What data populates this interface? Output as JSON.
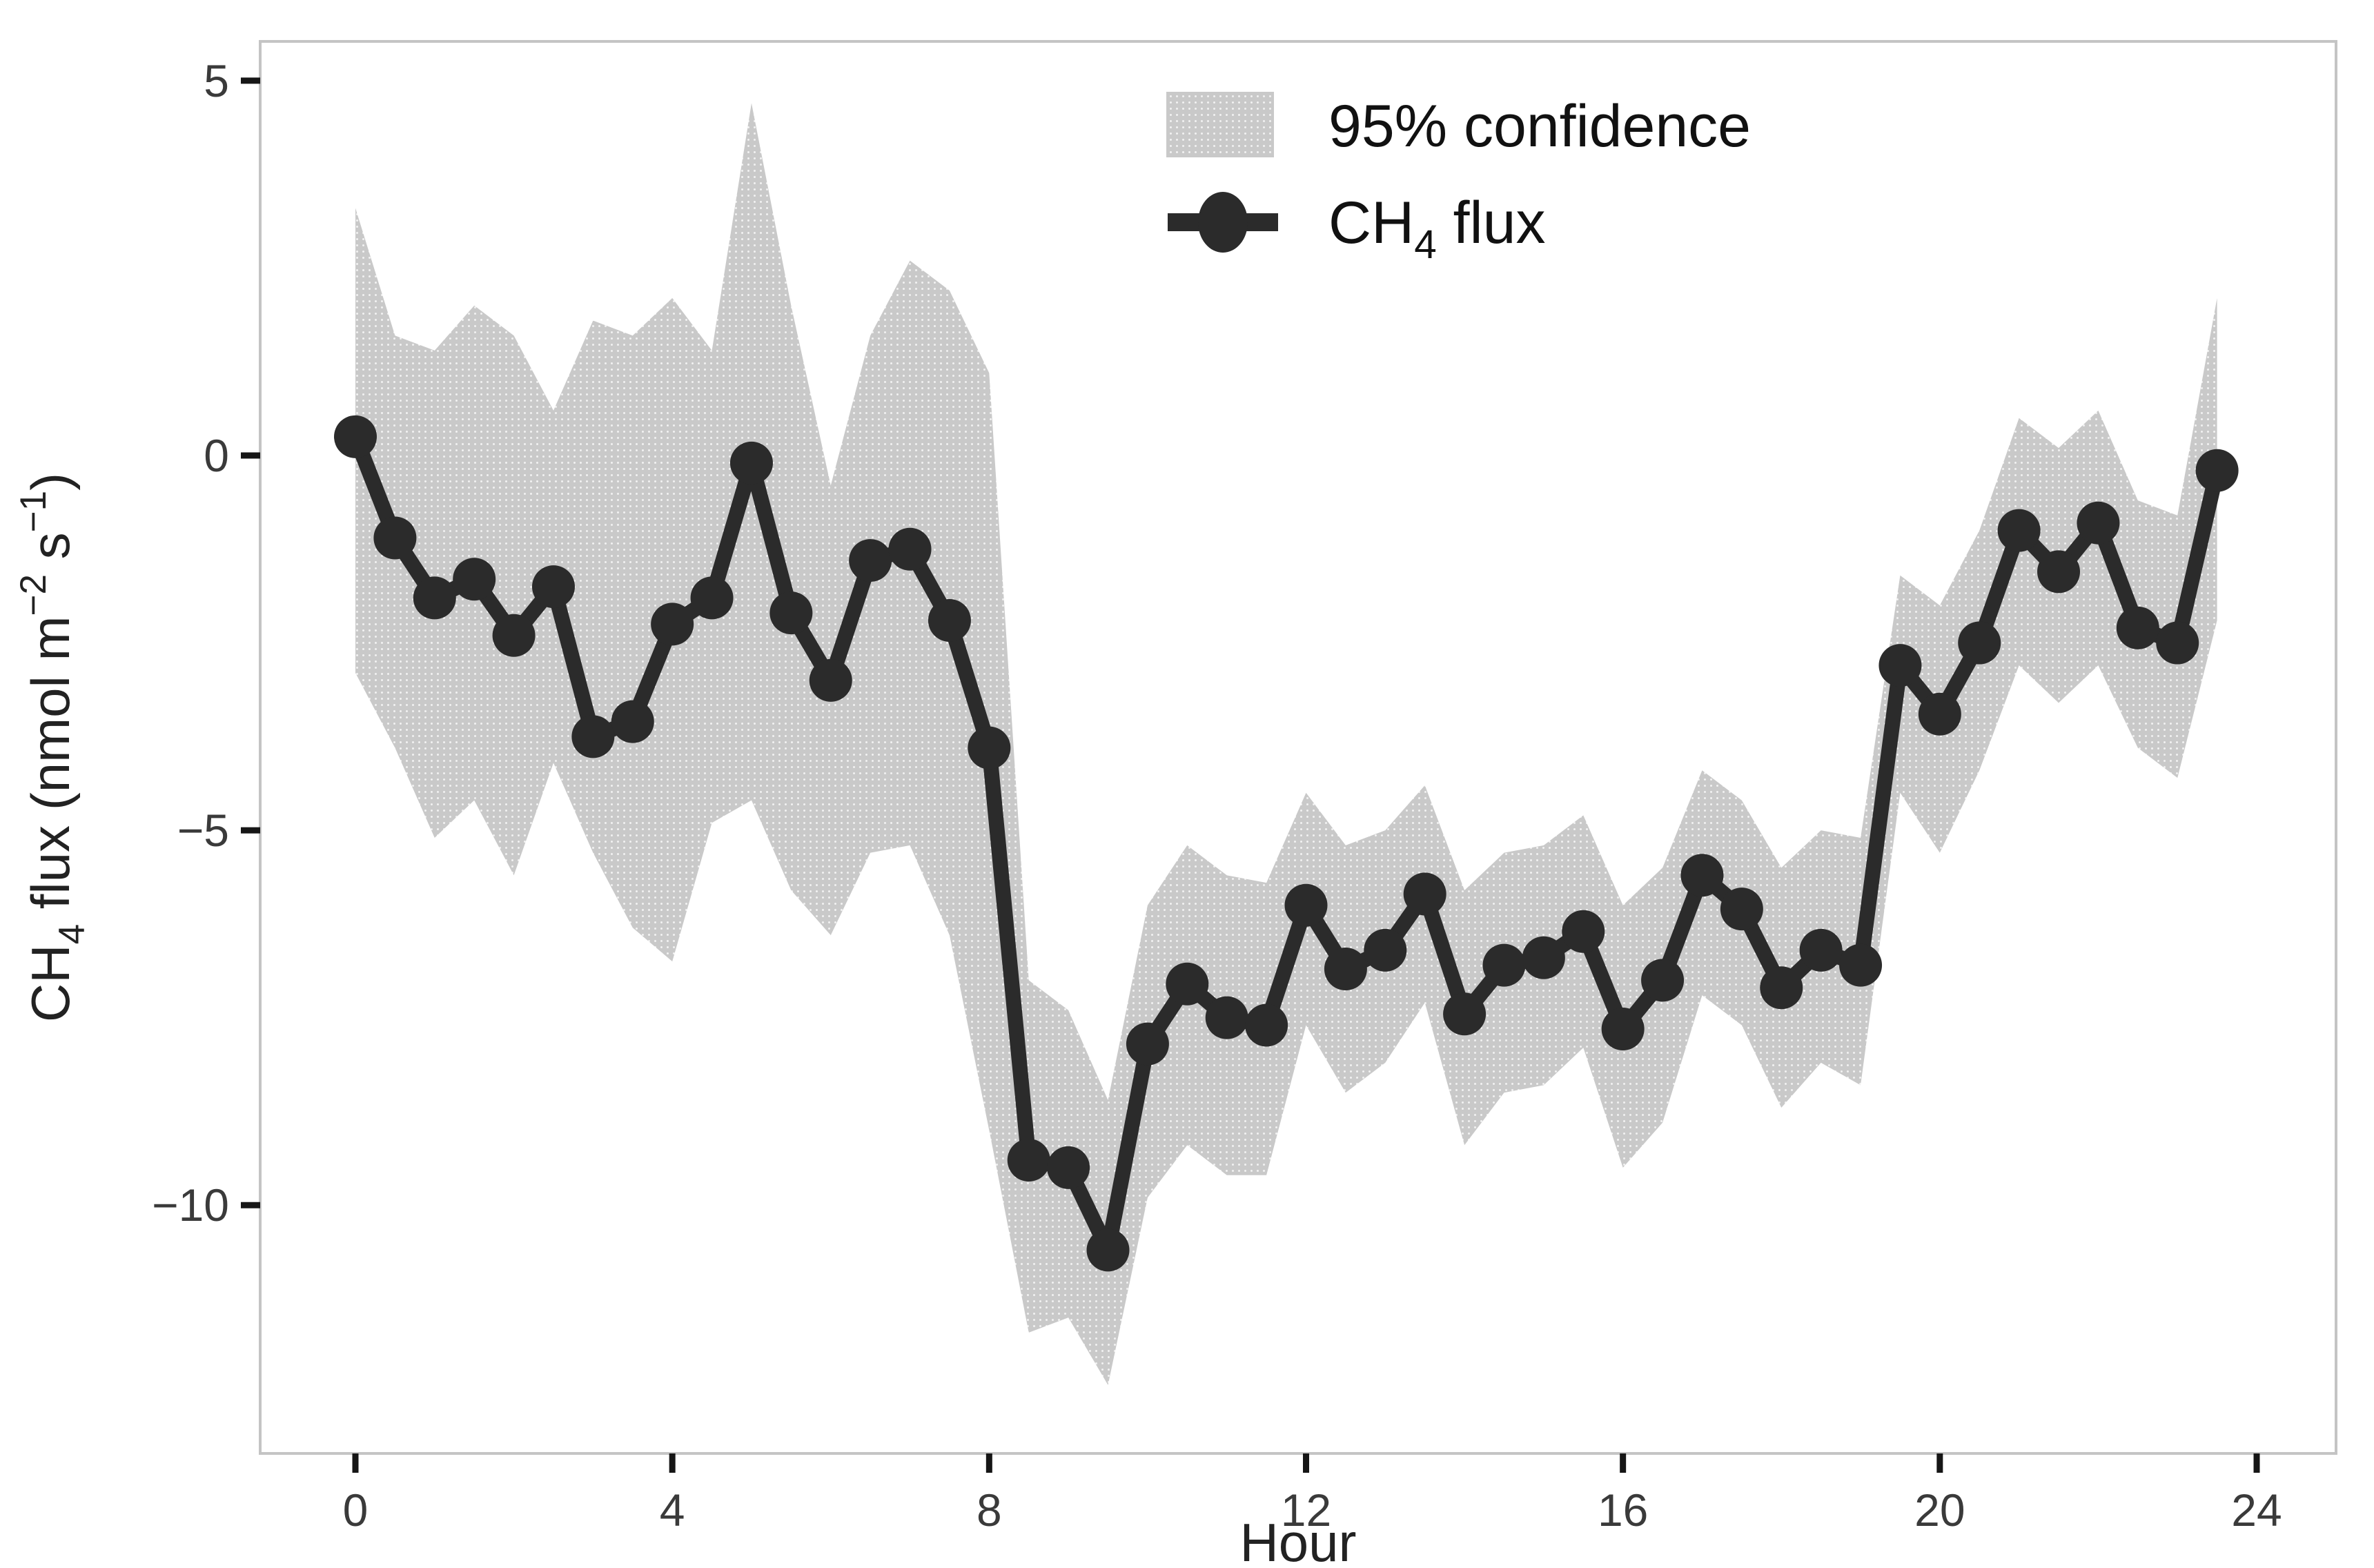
{
  "chart_data": {
    "type": "line",
    "title": "",
    "xlabel": "Hour",
    "ylabel": "CH4 flux (nmol m-2 s-1)",
    "x": [
      0,
      0.5,
      1,
      1.5,
      2,
      2.5,
      3,
      3.5,
      4,
      4.5,
      5,
      5.5,
      6,
      6.5,
      7,
      7.5,
      8,
      8.5,
      9,
      9.5,
      10,
      10.5,
      11,
      11.5,
      12,
      12.5,
      13,
      13.5,
      14,
      14.5,
      15,
      15.5,
      16,
      16.5,
      17,
      17.5,
      18,
      18.5,
      19,
      19.5,
      20,
      20.5,
      21,
      21.5,
      22,
      22.5,
      23,
      23.5
    ],
    "series": [
      {
        "name": "CH4 flux",
        "values": [
          0.25,
          -1.1,
          -1.9,
          -1.65,
          -2.4,
          -1.75,
          -3.75,
          -3.55,
          -2.25,
          -1.9,
          -0.1,
          -2.1,
          -3.0,
          -1.4,
          -1.25,
          -2.2,
          -3.9,
          -9.4,
          -9.5,
          -10.6,
          -7.85,
          -7.05,
          -7.5,
          -7.6,
          -6.0,
          -6.85,
          -6.6,
          -5.85,
          -7.45,
          -6.8,
          -6.7,
          -6.35,
          -7.65,
          -7.0,
          -5.6,
          -6.05,
          -7.1,
          -6.6,
          -6.8,
          -2.8,
          -3.45,
          -2.5,
          -1.0,
          -1.55,
          -0.9,
          -2.3,
          -2.5,
          -0.2
        ]
      }
    ],
    "band": {
      "name": "95% confidence",
      "upper": [
        3.3,
        1.6,
        1.4,
        2.0,
        1.6,
        0.6,
        1.8,
        1.6,
        2.1,
        1.4,
        4.7,
        2.0,
        -0.4,
        1.6,
        2.6,
        2.2,
        1.1,
        -7.0,
        -7.4,
        -8.6,
        -6.0,
        -5.2,
        -5.6,
        -5.7,
        -4.5,
        -5.2,
        -5.0,
        -4.4,
        -5.8,
        -5.3,
        -5.2,
        -4.8,
        -6.0,
        -5.5,
        -4.2,
        -4.6,
        -5.5,
        -5.0,
        -5.1,
        -1.6,
        -2.0,
        -1.0,
        0.5,
        0.1,
        0.6,
        -0.6,
        -0.8,
        2.1
      ],
      "lower": [
        -2.9,
        -3.9,
        -5.1,
        -4.6,
        -5.6,
        -4.1,
        -5.3,
        -6.3,
        -6.75,
        -4.9,
        -4.6,
        -5.8,
        -6.4,
        -5.3,
        -5.2,
        -6.4,
        -9.0,
        -11.7,
        -11.5,
        -12.4,
        -9.9,
        -9.2,
        -9.6,
        -9.6,
        -7.6,
        -8.5,
        -8.1,
        -7.3,
        -9.2,
        -8.5,
        -8.4,
        -7.9,
        -9.5,
        -8.9,
        -7.2,
        -7.6,
        -8.7,
        -8.1,
        -8.4,
        -4.5,
        -5.3,
        -4.2,
        -2.8,
        -3.3,
        -2.8,
        -3.9,
        -4.3,
        -2.2
      ]
    },
    "x_ticks": [
      0,
      4,
      8,
      12,
      16,
      20,
      24
    ],
    "x_tick_labels": [
      "0",
      "4",
      "8",
      "12",
      "16",
      "20",
      "24"
    ],
    "y_ticks": [
      5,
      0,
      -5,
      -10
    ],
    "y_tick_labels": [
      "5",
      "0",
      "−5",
      "−10"
    ],
    "xlim": [
      -1.2,
      25.0
    ],
    "ylim": [
      -13.3,
      5.5
    ],
    "grid": false,
    "legend_position": "top-center"
  },
  "axes": {
    "x_title": "Hour",
    "y_title_parts": [
      {
        "text": "CH"
      },
      {
        "text": "4",
        "style": "sub"
      },
      {
        "text": " flux (nmol m"
      },
      {
        "text": "−2",
        "style": "sup"
      },
      {
        "text": " s"
      },
      {
        "text": "−1",
        "style": "sup"
      },
      {
        "text": ")"
      }
    ]
  },
  "legend": {
    "band_label": "95% confidence",
    "flux_label_parts": [
      {
        "text": "CH"
      },
      {
        "text": "4",
        "style": "sub"
      },
      {
        "text": " flux"
      }
    ]
  },
  "colors": {
    "background": "#ffffff",
    "band_fill": "#c9c9c9",
    "band_dot": "#f2f2f2",
    "line": "#2b2b2b",
    "marker": "#2b2b2b",
    "tick_mark": "#161616",
    "tick_label": "#3a3a3a",
    "axis_title": "#222222",
    "panel_border": "#c4c4c4",
    "legend_text": "#111111"
  }
}
